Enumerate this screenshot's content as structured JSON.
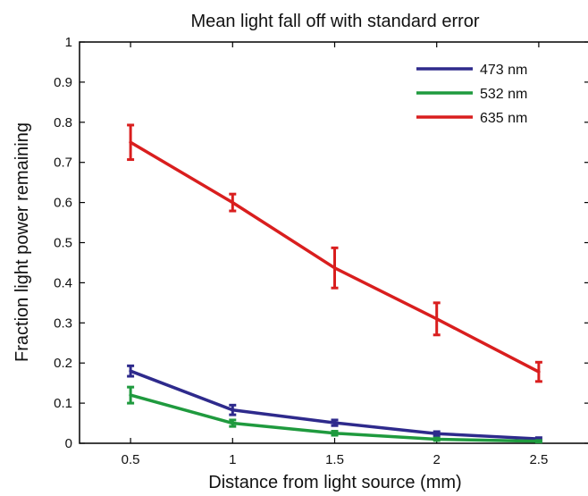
{
  "chart_data": {
    "type": "line",
    "title": "Mean light fall off with standard error",
    "xlabel": "Distance from light source (mm)",
    "ylabel": "Fraction light power remaining",
    "x": [
      0.5,
      1,
      1.5,
      2,
      2.5
    ],
    "xlim": [
      0.25,
      2.75
    ],
    "ylim": [
      0,
      1
    ],
    "xticks": [
      "0.5",
      "1",
      "1.5",
      "2",
      "2.5"
    ],
    "yticks": [
      "0",
      "0.1",
      "0.2",
      "0.3",
      "0.4",
      "0.5",
      "0.6",
      "0.7",
      "0.8",
      "0.9",
      "1"
    ],
    "grid": false,
    "legend_position": "top-right",
    "series": [
      {
        "name": "473 nm",
        "color": "#2e2a8c",
        "values": [
          0.18,
          0.083,
          0.051,
          0.024,
          0.011
        ],
        "errors": [
          0.013,
          0.012,
          0.007,
          0.005,
          0.003
        ]
      },
      {
        "name": "532 nm",
        "color": "#1f9a3e",
        "values": [
          0.12,
          0.05,
          0.025,
          0.01,
          0.005
        ],
        "errors": [
          0.02,
          0.008,
          0.005,
          0.003,
          0.002
        ]
      },
      {
        "name": "635 nm",
        "color": "#d91e1e",
        "values": [
          0.75,
          0.6,
          0.437,
          0.31,
          0.178
        ],
        "errors": [
          0.043,
          0.021,
          0.05,
          0.04,
          0.024
        ]
      }
    ]
  }
}
